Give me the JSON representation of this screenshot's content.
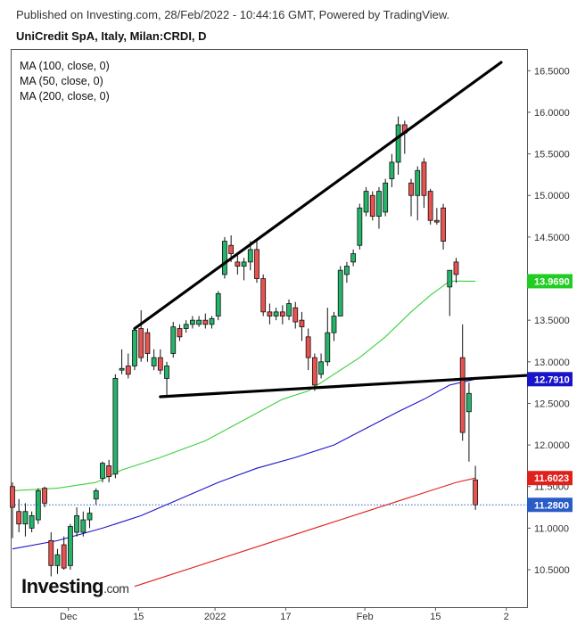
{
  "header": {
    "published": "Published on Investing.com, 28/Feb/2022 - 10:44:16 GMT, Powered by TradingView.",
    "symbol": "UniCredit SpA, Italy, Milan:CRDI, D"
  },
  "legend": [
    "MA (100, close, 0)",
    "MA (50, close, 0)",
    "MA (200, close, 0)"
  ],
  "brand": {
    "name": "Investing",
    "suffix": ".com"
  },
  "chart_data": {
    "type": "candlestick",
    "y_axis_ticks": [
      "16.5000",
      "16.0000",
      "15.5000",
      "15.0000",
      "14.5000",
      "14.0000",
      "13.5000",
      "13.0000",
      "12.5000",
      "12.0000",
      "11.5000",
      "11.0000",
      "10.5000"
    ],
    "x_axis_ticks": [
      "Dec",
      "15",
      "2022",
      "17",
      "Feb",
      "15",
      "2"
    ],
    "ylim": [
      10.05,
      16.75
    ],
    "price_tags": [
      {
        "label": "13.9690",
        "value": 13.969,
        "color": "#22cc22",
        "series": "MA (50)"
      },
      {
        "label": "12.7910",
        "value": 12.791,
        "color": "#1a14c8",
        "series": "MA (100)"
      },
      {
        "label": "11.6023",
        "value": 11.6023,
        "color": "#e0201b",
        "series": "MA (200)"
      },
      {
        "label": "11.2800",
        "value": 11.28,
        "color": "#2a5cc8",
        "series": "last"
      }
    ],
    "candles": [
      {
        "date": "2021-11-22",
        "o": 11.5,
        "h": 11.55,
        "l": 10.88,
        "c": 11.25
      },
      {
        "date": "2021-11-23",
        "o": 11.2,
        "h": 11.35,
        "l": 10.95,
        "c": 11.05
      },
      {
        "date": "2021-11-24",
        "o": 11.05,
        "h": 11.3,
        "l": 10.9,
        "c": 11.2
      },
      {
        "date": "2021-11-25",
        "o": 11.0,
        "h": 11.2,
        "l": 10.95,
        "c": 11.15
      },
      {
        "date": "2021-11-26",
        "o": 11.1,
        "h": 11.48,
        "l": 11.05,
        "c": 11.45
      },
      {
        "date": "2021-11-29",
        "o": 11.48,
        "h": 11.5,
        "l": 11.25,
        "c": 11.3
      },
      {
        "date": "2021-11-30",
        "o": 10.85,
        "h": 10.95,
        "l": 10.42,
        "c": 10.55
      },
      {
        "date": "2021-12-01",
        "o": 10.55,
        "h": 10.75,
        "l": 10.45,
        "c": 10.68
      },
      {
        "date": "2021-12-02",
        "o": 10.8,
        "h": 10.9,
        "l": 10.5,
        "c": 10.52
      },
      {
        "date": "2021-12-03",
        "o": 10.55,
        "h": 11.05,
        "l": 10.5,
        "c": 11.02
      },
      {
        "date": "2021-12-06",
        "o": 10.95,
        "h": 11.25,
        "l": 10.9,
        "c": 11.15
      },
      {
        "date": "2021-12-07",
        "o": 10.95,
        "h": 11.2,
        "l": 10.9,
        "c": 11.1
      },
      {
        "date": "2021-12-08",
        "o": 11.1,
        "h": 11.25,
        "l": 11.0,
        "c": 11.18
      },
      {
        "date": "2021-12-09",
        "o": 11.35,
        "h": 11.48,
        "l": 11.28,
        "c": 11.45
      },
      {
        "date": "2021-12-10",
        "o": 11.6,
        "h": 11.8,
        "l": 11.55,
        "c": 11.78
      },
      {
        "date": "2021-12-13",
        "o": 11.75,
        "h": 11.82,
        "l": 11.55,
        "c": 11.62
      },
      {
        "date": "2021-12-14",
        "o": 11.65,
        "h": 12.85,
        "l": 11.6,
        "c": 12.8
      },
      {
        "date": "2021-12-15",
        "o": 12.9,
        "h": 13.15,
        "l": 12.85,
        "c": 12.92
      },
      {
        "date": "2021-12-16",
        "o": 12.95,
        "h": 13.1,
        "l": 12.8,
        "c": 12.85
      },
      {
        "date": "2021-12-17",
        "o": 12.95,
        "h": 13.42,
        "l": 12.9,
        "c": 13.38
      },
      {
        "date": "2021-12-20",
        "o": 13.4,
        "h": 13.62,
        "l": 13.0,
        "c": 13.05
      },
      {
        "date": "2021-12-21",
        "o": 13.35,
        "h": 13.4,
        "l": 13.0,
        "c": 13.1
      },
      {
        "date": "2021-12-22",
        "o": 12.95,
        "h": 13.15,
        "l": 12.9,
        "c": 13.05
      },
      {
        "date": "2021-12-23",
        "o": 13.05,
        "h": 13.15,
        "l": 12.85,
        "c": 12.9
      },
      {
        "date": "2021-12-24",
        "o": 12.8,
        "h": 13.0,
        "l": 12.6,
        "c": 12.95
      },
      {
        "date": "2021-12-27",
        "o": 13.1,
        "h": 13.48,
        "l": 13.05,
        "c": 13.42
      },
      {
        "date": "2021-12-28",
        "o": 13.4,
        "h": 13.45,
        "l": 13.25,
        "c": 13.3
      },
      {
        "date": "2021-12-29",
        "o": 13.4,
        "h": 13.5,
        "l": 13.35,
        "c": 13.45
      },
      {
        "date": "2021-12-30",
        "o": 13.45,
        "h": 13.55,
        "l": 13.4,
        "c": 13.5
      },
      {
        "date": "2021-12-31",
        "o": 13.45,
        "h": 13.55,
        "l": 13.42,
        "c": 13.5
      },
      {
        "date": "2022-01-03",
        "o": 13.5,
        "h": 13.58,
        "l": 13.4,
        "c": 13.45
      },
      {
        "date": "2022-01-04",
        "o": 13.45,
        "h": 13.55,
        "l": 13.4,
        "c": 13.52
      },
      {
        "date": "2022-01-05",
        "o": 13.55,
        "h": 13.85,
        "l": 13.5,
        "c": 13.82
      },
      {
        "date": "2022-01-06",
        "o": 14.05,
        "h": 14.5,
        "l": 14.0,
        "c": 14.45
      },
      {
        "date": "2022-01-07",
        "o": 14.4,
        "h": 14.52,
        "l": 14.2,
        "c": 14.3
      },
      {
        "date": "2022-01-10",
        "o": 14.2,
        "h": 14.3,
        "l": 14.05,
        "c": 14.15
      },
      {
        "date": "2022-01-11",
        "o": 14.15,
        "h": 14.25,
        "l": 13.98,
        "c": 14.2
      },
      {
        "date": "2022-01-12",
        "o": 14.2,
        "h": 14.45,
        "l": 14.1,
        "c": 14.35
      },
      {
        "date": "2022-01-13",
        "o": 14.35,
        "h": 14.45,
        "l": 13.95,
        "c": 14.0
      },
      {
        "date": "2022-01-14",
        "o": 14.0,
        "h": 14.05,
        "l": 13.55,
        "c": 13.6
      },
      {
        "date": "2022-01-17",
        "o": 13.6,
        "h": 13.7,
        "l": 13.45,
        "c": 13.55
      },
      {
        "date": "2022-01-18",
        "o": 13.55,
        "h": 13.65,
        "l": 13.5,
        "c": 13.6
      },
      {
        "date": "2022-01-19",
        "o": 13.6,
        "h": 13.68,
        "l": 13.45,
        "c": 13.55
      },
      {
        "date": "2022-01-20",
        "o": 13.55,
        "h": 13.75,
        "l": 13.5,
        "c": 13.7
      },
      {
        "date": "2022-01-21",
        "o": 13.65,
        "h": 13.72,
        "l": 13.4,
        "c": 13.48
      },
      {
        "date": "2022-01-24",
        "o": 13.5,
        "h": 13.6,
        "l": 13.25,
        "c": 13.42
      },
      {
        "date": "2022-01-25",
        "o": 13.3,
        "h": 13.4,
        "l": 12.9,
        "c": 13.05
      },
      {
        "date": "2022-01-26",
        "o": 13.05,
        "h": 13.1,
        "l": 12.65,
        "c": 12.72
      },
      {
        "date": "2022-01-27",
        "o": 12.85,
        "h": 13.1,
        "l": 12.8,
        "c": 13.0
      },
      {
        "date": "2022-01-28",
        "o": 13.0,
        "h": 13.65,
        "l": 12.95,
        "c": 13.35
      },
      {
        "date": "2022-01-31",
        "o": 13.35,
        "h": 13.6,
        "l": 13.25,
        "c": 13.55
      },
      {
        "date": "2022-02-01",
        "o": 13.55,
        "h": 14.15,
        "l": 13.55,
        "c": 14.1
      },
      {
        "date": "2022-02-02",
        "o": 14.05,
        "h": 14.2,
        "l": 13.95,
        "c": 14.15
      },
      {
        "date": "2022-02-03",
        "o": 14.2,
        "h": 14.35,
        "l": 14.15,
        "c": 14.3
      },
      {
        "date": "2022-02-04",
        "o": 14.4,
        "h": 14.9,
        "l": 14.35,
        "c": 14.85
      },
      {
        "date": "2022-02-07",
        "o": 14.8,
        "h": 15.1,
        "l": 14.75,
        "c": 15.05
      },
      {
        "date": "2022-02-08",
        "o": 15.0,
        "h": 15.05,
        "l": 14.7,
        "c": 14.75
      },
      {
        "date": "2022-02-09",
        "o": 14.75,
        "h": 15.1,
        "l": 14.6,
        "c": 15.05
      },
      {
        "date": "2022-02-10",
        "o": 14.8,
        "h": 15.2,
        "l": 14.75,
        "c": 15.15
      },
      {
        "date": "2022-02-11",
        "o": 15.2,
        "h": 15.5,
        "l": 15.1,
        "c": 15.4
      },
      {
        "date": "2022-02-14",
        "o": 15.4,
        "h": 15.95,
        "l": 15.25,
        "c": 15.85
      },
      {
        "date": "2022-02-15",
        "o": 15.85,
        "h": 15.9,
        "l": 15.5,
        "c": 15.75
      },
      {
        "date": "2022-02-16",
        "o": 15.15,
        "h": 15.2,
        "l": 14.75,
        "c": 15.0
      },
      {
        "date": "2022-02-17",
        "o": 15.0,
        "h": 15.35,
        "l": 14.7,
        "c": 15.3
      },
      {
        "date": "2022-02-18",
        "o": 15.4,
        "h": 15.45,
        "l": 14.85,
        "c": 15.0
      },
      {
        "date": "2022-02-21",
        "o": 15.05,
        "h": 15.08,
        "l": 14.65,
        "c": 14.7
      },
      {
        "date": "2022-02-22",
        "o": 14.7,
        "h": 14.85,
        "l": 14.65,
        "c": 14.68
      },
      {
        "date": "2022-02-23",
        "o": 14.85,
        "h": 14.9,
        "l": 14.35,
        "c": 14.45
      },
      {
        "date": "2022-02-24",
        "o": 13.9,
        "h": 14.1,
        "l": 13.55,
        "c": 14.1
      },
      {
        "date": "2022-02-25",
        "o": 14.2,
        "h": 14.25,
        "l": 13.95,
        "c": 14.05
      },
      {
        "date": "2022-02-28",
        "o": 13.05,
        "h": 13.45,
        "l": 12.05,
        "c": 12.15
      },
      {
        "date": "2022-03-01",
        "o": 12.4,
        "h": 12.75,
        "l": 11.8,
        "c": 12.62
      },
      {
        "date": "2022-03-02",
        "o": 11.58,
        "h": 11.75,
        "l": 11.22,
        "c": 11.28
      }
    ],
    "moving_averages": [
      {
        "name": "MA (50, close, 0)",
        "color": "#3fcf3f",
        "points": [
          [
            0,
            11.45
          ],
          [
            7,
            11.48
          ],
          [
            13,
            11.55
          ],
          [
            17,
            11.7
          ],
          [
            23,
            11.85
          ],
          [
            30,
            12.05
          ],
          [
            36,
            12.3
          ],
          [
            42,
            12.55
          ],
          [
            46,
            12.65
          ],
          [
            50,
            12.85
          ],
          [
            54,
            13.05
          ],
          [
            58,
            13.3
          ],
          [
            62,
            13.6
          ],
          [
            65,
            13.8
          ],
          [
            68,
            13.97
          ],
          [
            72,
            13.969
          ]
        ]
      },
      {
        "name": "MA (100, close, 0)",
        "color": "#1a14c8",
        "points": [
          [
            0,
            10.75
          ],
          [
            7,
            10.85
          ],
          [
            14,
            11.0
          ],
          [
            20,
            11.15
          ],
          [
            26,
            11.35
          ],
          [
            32,
            11.55
          ],
          [
            38,
            11.72
          ],
          [
            44,
            11.85
          ],
          [
            50,
            12.0
          ],
          [
            55,
            12.2
          ],
          [
            60,
            12.4
          ],
          [
            64,
            12.55
          ],
          [
            68,
            12.72
          ],
          [
            72,
            12.791
          ]
        ]
      },
      {
        "name": "MA (200, close, 0)",
        "color": "#e0201b",
        "points": [
          [
            19,
            10.3
          ],
          [
            25,
            10.45
          ],
          [
            31,
            10.6
          ],
          [
            37,
            10.75
          ],
          [
            43,
            10.9
          ],
          [
            49,
            11.05
          ],
          [
            55,
            11.2
          ],
          [
            61,
            11.35
          ],
          [
            65,
            11.45
          ],
          [
            69,
            11.55
          ],
          [
            72,
            11.6023
          ]
        ]
      }
    ],
    "trendlines": [
      {
        "name": "upper",
        "points": [
          [
            19,
            13.4
          ],
          [
            76,
            16.6
          ]
        ]
      },
      {
        "name": "neckline",
        "points": [
          [
            23,
            12.58
          ],
          [
            83,
            12.85
          ]
        ]
      }
    ]
  }
}
